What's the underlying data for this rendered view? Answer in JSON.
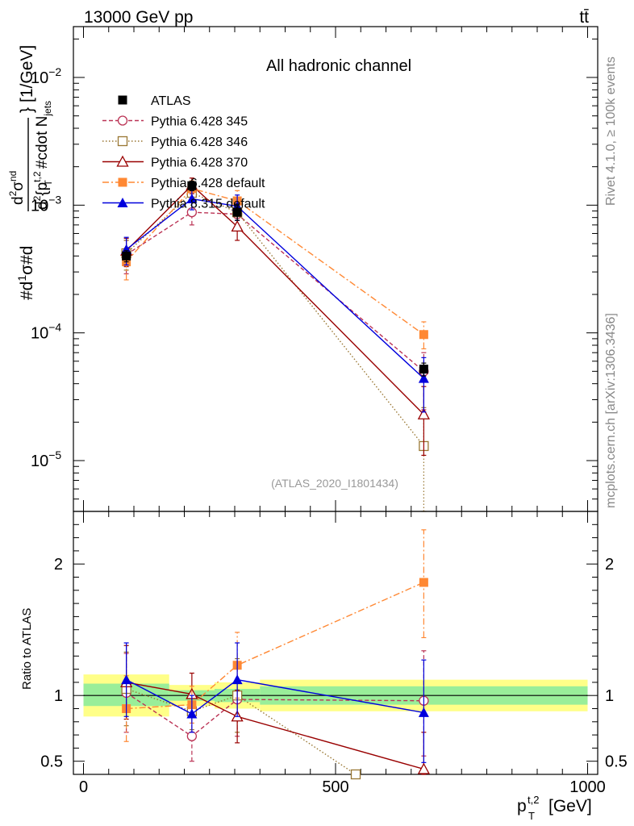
{
  "header": {
    "beam": "13000 GeV pp",
    "process": "tt̄",
    "rivet_note": "Rivet 4.1.0, ≥ 100k events",
    "site_note": "mcplots.cern.ch [arXiv:1306.3436]"
  },
  "colors": {
    "atlas": "#000000",
    "py345": "#bb3355",
    "py346": "#997733",
    "py370": "#990000",
    "pydefault": "#ff8833",
    "py8": "#0000dd",
    "band_stat": "#99ee99",
    "band_total": "#ffff88"
  },
  "chart_data": [
    {
      "type": "scatter",
      "panel": "main",
      "title": "All hadronic channel",
      "watermark": "(ATLAS_2020_I1801434)",
      "xlabel": "p_T^{t,2} [GeV]",
      "ylabel": "#d1/σ#d d²σ^{nd} / d² {p_T^{t,2} #cdot N_jets} [1/GeV]",
      "ylabel_parts": {
        "p1": "#d",
        "p2": "1",
        "p3": "σ",
        "p4": "#d",
        "num": "d",
        "num_sup": "2",
        "num_sigma": "σ",
        "num_sigma_sup": "nd",
        "den": "d",
        "den_sup": "2",
        "den_p": "{p",
        "den_p_sup": "t,2",
        "den_p_sub": "T",
        "den_rest": "#cdot N",
        "den_rest_sub": "jets",
        "close": "}",
        "unit": "[1/GeV]"
      },
      "xlim": [
        -20,
        1020
      ],
      "ylim": [
        4e-06,
        0.025
      ],
      "yscale": "log",
      "y_ticks": [
        {
          "value": 1e-05,
          "label": "10",
          "exp": "−5"
        },
        {
          "value": 0.0001,
          "label": "10",
          "exp": "−4"
        },
        {
          "value": 0.001,
          "label": "10",
          "exp": "−3"
        },
        {
          "value": 0.01,
          "label": "10",
          "exp": "−2"
        }
      ],
      "series": [
        {
          "name": "ATLAS",
          "key": "atlas",
          "color": "#000000",
          "marker": "square-filled",
          "line": "none",
          "x": [
            85,
            215,
            305,
            675
          ],
          "y": [
            0.0004,
            0.00142,
            0.00088,
            5.2e-05
          ],
          "err_lo": [
            4e-05,
            0.00012,
            0.00012,
            6e-06
          ],
          "err_hi": [
            4e-05,
            0.00012,
            0.00012,
            6e-06
          ]
        },
        {
          "name": "Pythia 6.428 345",
          "key": "py345",
          "color": "#bb3355",
          "marker": "circle-open",
          "line": "dashed",
          "x": [
            85,
            215,
            305,
            675
          ],
          "y": [
            0.00041,
            0.00088,
            0.00085,
            5e-05
          ],
          "err_lo": [
            0.00012,
            0.00018,
            0.00022,
            2.5e-05
          ],
          "err_hi": [
            0.00012,
            0.00018,
            0.00022,
            2e-05
          ]
        },
        {
          "name": "Pythia 6.428 346",
          "key": "py346",
          "color": "#997733",
          "marker": "square-open",
          "line": "dotted",
          "x": [
            85,
            215,
            305,
            675
          ],
          "y": [
            0.00042,
            0.00125,
            0.00088,
            1.3e-05
          ],
          "err_lo": [
            0.00011,
            0.0002,
            0.00022,
            1e-05
          ],
          "err_hi": [
            0.00011,
            0.0002,
            0.00022,
            1.3e-05
          ]
        },
        {
          "name": "Pythia 6.428 370",
          "key": "py370",
          "color": "#990000",
          "marker": "triangle-open",
          "line": "solid",
          "x": [
            85,
            215,
            305,
            675
          ],
          "y": [
            0.00044,
            0.00143,
            0.00068,
            2.3e-05
          ],
          "err_lo": [
            0.00011,
            0.0002,
            0.00015,
            1.2e-05
          ],
          "err_hi": [
            0.00011,
            0.0002,
            0.00015,
            1.5e-05
          ]
        },
        {
          "name": "Pythia 6.428 default",
          "key": "pydefault",
          "color": "#ff8833",
          "marker": "square-filled",
          "line": "dashdot",
          "x": [
            85,
            215,
            305,
            675
          ],
          "y": [
            0.00036,
            0.00135,
            0.00108,
            9.7e-05
          ],
          "err_lo": [
            0.0001,
            0.0002,
            0.00022,
            2.2e-05
          ],
          "err_hi": [
            0.0001,
            0.0002,
            0.00022,
            2.5e-05
          ]
        },
        {
          "name": "Pythia 8.315 default",
          "key": "py8",
          "color": "#0000dd",
          "marker": "triangle-filled",
          "line": "solid",
          "x": [
            85,
            215,
            305,
            675
          ],
          "y": [
            0.00045,
            0.00112,
            0.00098,
            4.4e-05
          ],
          "err_lo": [
            0.00011,
            0.0002,
            0.00022,
            2e-05
          ],
          "err_hi": [
            0.00011,
            0.0002,
            0.00022,
            2e-05
          ]
        }
      ]
    },
    {
      "type": "scatter",
      "panel": "ratio",
      "ylabel": "Ratio to ATLAS",
      "xlim": [
        -20,
        1020
      ],
      "ylim": [
        0.4,
        2.4
      ],
      "x_ticks": [
        {
          "value": 0,
          "label": "0"
        },
        {
          "value": 500,
          "label": "500"
        },
        {
          "value": 1000,
          "label": "1000"
        }
      ],
      "y_ticks": [
        {
          "value": 0.5,
          "label": "0.5"
        },
        {
          "value": 1,
          "label": "1"
        },
        {
          "value": 2,
          "label": "2"
        }
      ],
      "bands": [
        {
          "x0": 0,
          "x1": 170,
          "stat": [
            0.92,
            1.09
          ],
          "total": [
            0.84,
            1.16
          ]
        },
        {
          "x0": 170,
          "x1": 260,
          "stat": [
            0.96,
            1.04
          ],
          "total": [
            0.92,
            1.08
          ]
        },
        {
          "x0": 260,
          "x1": 350,
          "stat": [
            0.95,
            1.05
          ],
          "total": [
            0.9,
            1.1
          ]
        },
        {
          "x0": 350,
          "x1": 1000,
          "stat": [
            0.93,
            1.07
          ],
          "total": [
            0.88,
            1.12
          ]
        }
      ],
      "series": [
        {
          "name": "Pythia 6.428 345",
          "key": "py345",
          "color": "#bb3355",
          "marker": "circle-open",
          "line": "dashed",
          "x": [
            85,
            215,
            305,
            675
          ],
          "y": [
            1.02,
            0.69,
            0.97,
            0.96
          ],
          "err_lo": [
            0.3,
            0.19,
            0.28,
            0.42
          ],
          "err_hi": [
            0.3,
            0.19,
            0.28,
            0.38
          ]
        },
        {
          "name": "Pythia 6.428 346",
          "key": "py346",
          "color": "#997733",
          "marker": "square-open",
          "line": "dotted",
          "x": [
            85,
            215,
            305,
            540
          ],
          "y": [
            1.05,
            0.88,
            1.0,
            0.4
          ],
          "err_lo": [
            0.28,
            0.14,
            0.28,
            0.0
          ],
          "err_hi": [
            0.28,
            0.14,
            0.28,
            0.0
          ]
        },
        {
          "name": "Pythia 6.428 370",
          "key": "py370",
          "color": "#990000",
          "marker": "triangle-open",
          "line": "solid",
          "x": [
            85,
            215,
            305,
            675
          ],
          "y": [
            1.1,
            1.01,
            0.84,
            0.44
          ],
          "err_lo": [
            0.28,
            0.16,
            0.2,
            0.24
          ],
          "err_hi": [
            0.28,
            0.16,
            0.2,
            0.28
          ]
        },
        {
          "name": "Pythia 6.428 default",
          "key": "pydefault",
          "color": "#ff8833",
          "marker": "square-filled",
          "line": "dashdot",
          "x": [
            85,
            215,
            305,
            675
          ],
          "y": [
            0.9,
            0.93,
            1.23,
            1.86
          ],
          "err_lo": [
            0.25,
            0.14,
            0.25,
            0.42
          ],
          "err_hi": [
            0.25,
            0.14,
            0.25,
            0.4
          ]
        },
        {
          "name": "Pythia 8.315 default",
          "key": "py8",
          "color": "#0000dd",
          "marker": "triangle-filled",
          "line": "solid",
          "x": [
            85,
            215,
            305,
            675
          ],
          "y": [
            1.12,
            0.86,
            1.12,
            0.87
          ],
          "err_lo": [
            0.28,
            0.14,
            0.28,
            0.38
          ],
          "err_hi": [
            0.28,
            0.14,
            0.28,
            0.4
          ]
        }
      ]
    }
  ]
}
